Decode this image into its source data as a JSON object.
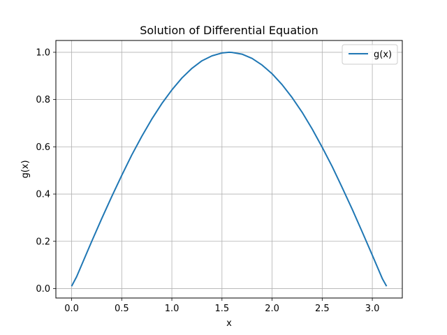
{
  "chart_data": {
    "type": "line",
    "title": "Solution of Differential Equation",
    "xlabel": "x",
    "ylabel": "g(x)",
    "xlim": [
      -0.157,
      3.299
    ],
    "ylim": [
      -0.04,
      1.05
    ],
    "xticks": [
      0.0,
      0.5,
      1.0,
      1.5,
      2.0,
      2.5,
      3.0
    ],
    "xtick_labels": [
      "0.0",
      "0.5",
      "1.0",
      "1.5",
      "2.0",
      "2.5",
      "3.0"
    ],
    "yticks": [
      0.0,
      0.2,
      0.4,
      0.6,
      0.8,
      1.0
    ],
    "ytick_labels": [
      "0.0",
      "0.2",
      "0.4",
      "0.6",
      "0.8",
      "1.0"
    ],
    "grid": true,
    "legend_position": "top-right",
    "series": [
      {
        "name": "g(x)",
        "color": "#1f77b4",
        "x": [
          0.0,
          0.05,
          0.1,
          0.2,
          0.3,
          0.4,
          0.5,
          0.6,
          0.7,
          0.8,
          0.9,
          1.0,
          1.1,
          1.2,
          1.3,
          1.4,
          1.5,
          1.571,
          1.6,
          1.7,
          1.8,
          1.9,
          2.0,
          2.1,
          2.2,
          2.3,
          2.4,
          2.5,
          2.6,
          2.7,
          2.8,
          2.9,
          3.0,
          3.1,
          3.142
        ],
        "y": [
          0.01,
          0.05,
          0.1,
          0.199,
          0.296,
          0.389,
          0.479,
          0.565,
          0.644,
          0.717,
          0.783,
          0.841,
          0.891,
          0.932,
          0.964,
          0.985,
          0.997,
          1.0,
          0.9996,
          0.992,
          0.974,
          0.946,
          0.909,
          0.863,
          0.808,
          0.746,
          0.675,
          0.598,
          0.516,
          0.427,
          0.335,
          0.239,
          0.141,
          0.042,
          0.01
        ]
      }
    ]
  }
}
